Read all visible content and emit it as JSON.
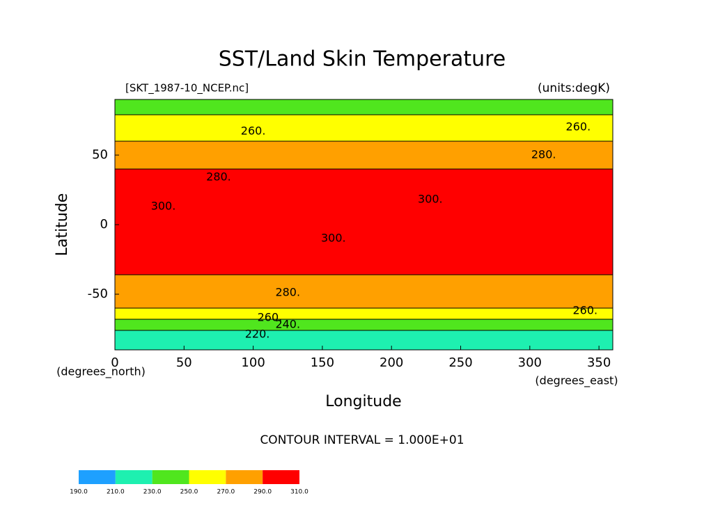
{
  "chart_data": {
    "type": "contour-map",
    "title": "SST/Land Skin Temperature",
    "subtitle_left": "[SKT_1987-10_NCEP.nc]",
    "subtitle_right": "(units:degK)",
    "x_label": "Longitude",
    "y_label": "Latitude",
    "x_unit": "(degrees_east)",
    "y_unit": "(degrees_north)",
    "annotation": "CONTOUR INTERVAL = 1.000E+01",
    "xlim": [
      0,
      360
    ],
    "ylim": [
      -90,
      90
    ],
    "xticks": [
      0,
      50,
      100,
      150,
      200,
      250,
      300,
      350
    ],
    "yticks": [
      -50,
      0,
      50
    ],
    "levels": [
      {
        "value": 190,
        "label": "190.0"
      },
      {
        "value": 210,
        "label": "210.0"
      },
      {
        "value": 230,
        "label": "230.0"
      },
      {
        "value": 250,
        "label": "250.0"
      },
      {
        "value": 270,
        "label": "270.0"
      },
      {
        "value": 290,
        "label": "290.0"
      },
      {
        "value": 310,
        "label": "310.0"
      }
    ],
    "colors": [
      "#1ea0ff",
      "#1ef0b0",
      "#50e61e",
      "#ffff00",
      "#ffa000",
      "#ff0000"
    ],
    "zonal_bands": [
      {
        "lat": [
          -90,
          -76
        ],
        "level": 1
      },
      {
        "lat": [
          -76,
          -68
        ],
        "level": 2
      },
      {
        "lat": [
          -68,
          -60
        ],
        "level": 3
      },
      {
        "lat": [
          -60,
          -36
        ],
        "level": 4
      },
      {
        "lat": [
          -36,
          40
        ],
        "level": 5
      },
      {
        "lat": [
          40,
          60
        ],
        "level": 4
      },
      {
        "lat": [
          60,
          79
        ],
        "level": 3
      },
      {
        "lat": [
          79,
          90
        ],
        "level": 2
      }
    ],
    "contour_labels": [
      {
        "value": 260,
        "label": "260.",
        "lon": 100,
        "lat": 67
      },
      {
        "value": 260,
        "label": "260.",
        "lon": 335,
        "lat": 70
      },
      {
        "value": 280,
        "label": "280.",
        "lon": 310,
        "lat": 50
      },
      {
        "value": 280,
        "label": "280.",
        "lon": 75,
        "lat": 34
      },
      {
        "value": 300,
        "label": "300.",
        "lon": 228,
        "lat": 18
      },
      {
        "value": 300,
        "label": "300.",
        "lon": 35,
        "lat": 13
      },
      {
        "value": 300,
        "label": "300.",
        "lon": 158,
        "lat": -10
      },
      {
        "value": 280,
        "label": "280.",
        "lon": 125,
        "lat": -49
      },
      {
        "value": 260,
        "label": "260.",
        "lon": 340,
        "lat": -62
      },
      {
        "value": 260,
        "label": "260.",
        "lon": 112,
        "lat": -67
      },
      {
        "value": 240,
        "label": "240.",
        "lon": 125,
        "lat": -72
      },
      {
        "value": 220,
        "label": "220.",
        "lon": 103,
        "lat": -79
      }
    ]
  }
}
